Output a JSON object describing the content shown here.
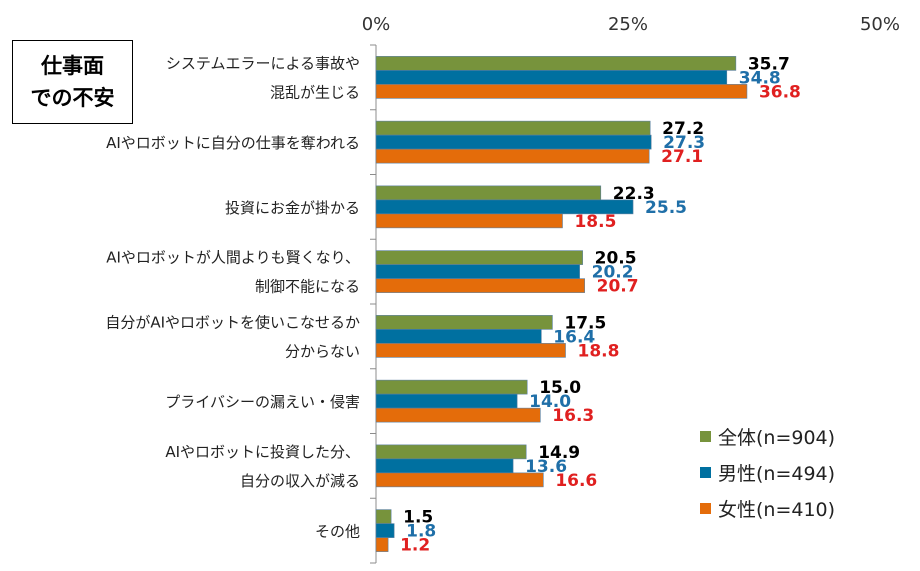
{
  "title": {
    "line1": "仕事面",
    "line2": "での不安"
  },
  "colors": {
    "all": "#77933C",
    "male": "#0070A0",
    "female": "#E46C0A",
    "label_all": "#000000",
    "label_male": "#1F6FA8",
    "label_female": "#E02020"
  },
  "legend": [
    {
      "label": "全体(n=904)",
      "color": "#77933C"
    },
    {
      "label": "男性(n=494)",
      "color": "#0070A0"
    },
    {
      "label": "女性(n=410)",
      "color": "#E46C0A"
    }
  ],
  "chart_data": {
    "type": "bar",
    "orientation": "horizontal",
    "title": "仕事面での不安",
    "xlim": [
      0,
      50
    ],
    "ticks": [
      {
        "value": 0,
        "label": "0%"
      },
      {
        "value": 25,
        "label": "25%"
      },
      {
        "value": 50,
        "label": "50%"
      }
    ],
    "categories": [
      [
        "システムエラーによる事故や",
        "混乱が生じる"
      ],
      [
        "AIやロボットに自分の仕事を奪われる"
      ],
      [
        "投資にお金が掛かる"
      ],
      [
        "AIやロボットが人間よりも賢くなり、",
        "制御不能になる"
      ],
      [
        "自分がAIやロボットを使いこなせるか",
        "分からない"
      ],
      [
        "プライバシーの漏えい・侵害"
      ],
      [
        "AIやロボットに投資した分、",
        "自分の収入が減る"
      ],
      [
        "その他"
      ]
    ],
    "series": [
      {
        "name": "全体(n=904)",
        "values": [
          35.7,
          27.2,
          22.3,
          20.5,
          17.5,
          15.0,
          14.9,
          1.5
        ]
      },
      {
        "name": "男性(n=494)",
        "values": [
          34.8,
          27.3,
          25.5,
          20.2,
          16.4,
          14.0,
          13.6,
          1.8
        ]
      },
      {
        "name": "女性(n=410)",
        "values": [
          36.8,
          27.1,
          18.5,
          20.7,
          18.8,
          16.3,
          16.6,
          1.2
        ]
      }
    ]
  }
}
